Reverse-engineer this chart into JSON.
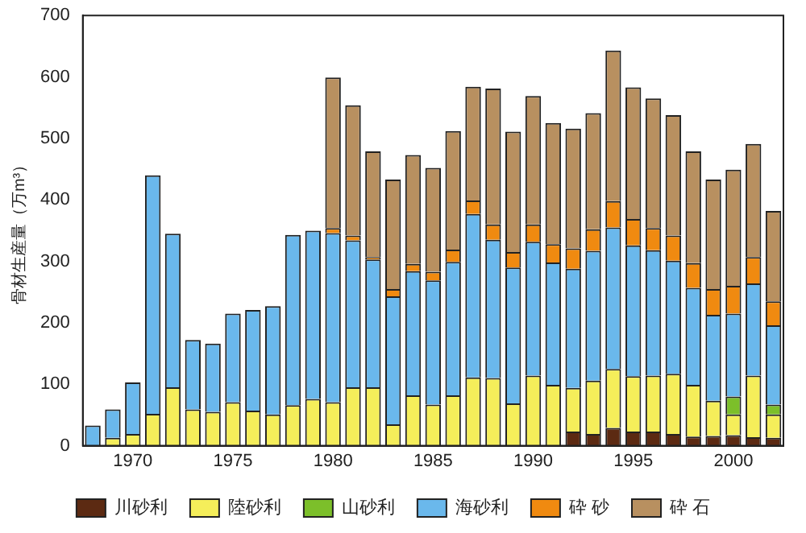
{
  "chart_data": {
    "type": "bar",
    "stacked": true,
    "ylabel": "骨材生産量（万m³）",
    "categories": [
      null,
      null,
      "1970",
      null,
      null,
      null,
      null,
      "1975",
      null,
      null,
      null,
      null,
      "1980",
      null,
      null,
      null,
      null,
      "1985",
      null,
      null,
      null,
      null,
      "1990",
      null,
      null,
      null,
      null,
      "1995",
      null,
      null,
      null,
      null,
      "2000",
      null,
      null
    ],
    "ylim": [
      0,
      700
    ],
    "yticks": [
      0,
      100,
      200,
      300,
      400,
      500,
      600,
      700
    ],
    "grid": false,
    "legend": "bottom",
    "series": [
      {
        "name": "川砂利",
        "color": "#5c2a12",
        "values": [
          0,
          0,
          0,
          0,
          0,
          0,
          0,
          0,
          0,
          0,
          0,
          0,
          0,
          0,
          0,
          0,
          0,
          0,
          0,
          0,
          0,
          0,
          0,
          0,
          23,
          19,
          29,
          23,
          23,
          19,
          15,
          16,
          17,
          14,
          13
        ]
      },
      {
        "name": "陸砂利",
        "color": "#f5ee5a",
        "values": [
          null,
          13,
          19,
          52,
          95,
          59,
          55,
          71,
          57,
          51,
          66,
          76,
          71,
          95,
          95,
          35,
          82,
          67,
          82,
          111,
          110,
          69,
          114,
          99,
          71,
          87,
          96,
          90,
          91,
          98,
          84,
          57,
          34,
          100,
          38
        ]
      },
      {
        "name": "山砂利",
        "color": "#7cbf2a",
        "values": [
          0,
          0,
          0,
          0,
          0,
          0,
          0,
          0,
          0,
          0,
          0,
          0,
          0,
          0,
          0,
          0,
          0,
          0,
          0,
          0,
          0,
          0,
          0,
          0,
          0,
          0,
          0,
          0,
          0,
          0,
          0,
          0,
          29,
          0,
          16
        ]
      },
      {
        "name": "海砂利",
        "color": "#6ab8ec",
        "values": [
          33,
          46,
          84,
          388,
          250,
          113,
          111,
          144,
          164,
          176,
          277,
          274,
          275,
          239,
          208,
          208,
          202,
          202,
          217,
          266,
          225,
          221,
          218,
          199,
          194,
          211,
          230,
          213,
          204,
          184,
          158,
          140,
          135,
          150,
          129
        ]
      },
      {
        "name": "砕 砂",
        "color": "#f08a10",
        "values": [
          0,
          0,
          0,
          0,
          0,
          0,
          0,
          0,
          0,
          0,
          0,
          0,
          8,
          8,
          4,
          12,
          12,
          14,
          20,
          22,
          25,
          25,
          28,
          30,
          33,
          35,
          43,
          43,
          36,
          41,
          40,
          42,
          45,
          43,
          39
        ]
      },
      {
        "name": "砕 石",
        "color": "#b89060",
        "values": [
          0,
          0,
          0,
          0,
          0,
          0,
          0,
          0,
          0,
          0,
          0,
          0,
          245,
          212,
          172,
          178,
          177,
          169,
          193,
          185,
          221,
          196,
          209,
          197,
          195,
          189,
          245,
          214,
          211,
          196,
          182,
          178,
          189,
          184,
          147
        ]
      }
    ]
  }
}
